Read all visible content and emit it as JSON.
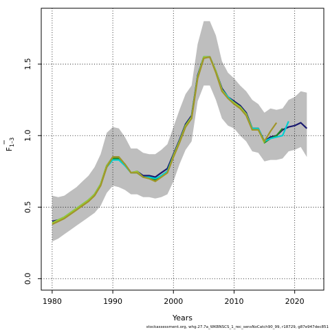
{
  "chart_data": {
    "type": "line",
    "title": "",
    "xlabel": "Years",
    "ylabel": "F",
    "ylabel_subscript": "1–3",
    "footer": "stockassessment.org, whg.27.7a_WKBNSCS_1_rec_sensNoCatch90_99, r18729, g87e947dec851",
    "xlim": [
      1978.2,
      1979.8
    ],
    "x_range": [
      1978.2,
      2024.8
    ],
    "y_range": [
      -0.08,
      1.89
    ],
    "x_ticks": [
      1980,
      1990,
      2000,
      2010,
      2020
    ],
    "y_ticks": [
      0.0,
      0.5,
      1.0,
      1.5
    ],
    "y_tick_labels": [
      "0.0",
      "0.5",
      "1.0",
      "1.5"
    ],
    "grid": true,
    "grid_style": "dotted",
    "legend": "none",
    "confidence_band": {
      "color": "#bebebe",
      "x": [
        1980,
        1981,
        1982,
        1983,
        1984,
        1985,
        1986,
        1987,
        1988,
        1989,
        1990,
        1991,
        1992,
        1993,
        1994,
        1995,
        1996,
        1997,
        1998,
        1999,
        2000,
        2001,
        2002,
        2003,
        2004,
        2005,
        2006,
        2007,
        2008,
        2009,
        2010,
        2011,
        2012,
        2013,
        2014,
        2015,
        2016,
        2017,
        2018,
        2019,
        2020,
        2021,
        2022
      ],
      "upper": [
        0.58,
        0.57,
        0.58,
        0.61,
        0.64,
        0.68,
        0.72,
        0.78,
        0.87,
        1.02,
        1.06,
        1.05,
        0.99,
        0.91,
        0.91,
        0.88,
        0.87,
        0.87,
        0.9,
        0.94,
        1.06,
        1.18,
        1.29,
        1.35,
        1.64,
        1.8,
        1.8,
        1.7,
        1.52,
        1.44,
        1.4,
        1.35,
        1.31,
        1.25,
        1.22,
        1.16,
        1.19,
        1.18,
        1.19,
        1.25,
        1.27,
        1.31,
        1.3
      ],
      "lower": [
        0.26,
        0.28,
        0.31,
        0.34,
        0.37,
        0.4,
        0.43,
        0.46,
        0.51,
        0.6,
        0.65,
        0.64,
        0.62,
        0.59,
        0.59,
        0.57,
        0.57,
        0.56,
        0.57,
        0.59,
        0.68,
        0.8,
        0.9,
        0.96,
        1.24,
        1.35,
        1.35,
        1.25,
        1.12,
        1.07,
        1.05,
        1.0,
        0.96,
        0.89,
        0.88,
        0.82,
        0.83,
        0.83,
        0.84,
        0.89,
        0.9,
        0.92,
        0.85
      ]
    },
    "series": [
      {
        "color": "#191970",
        "x": [
          1980,
          1981,
          1982,
          1983,
          1984,
          1985,
          1986,
          1987,
          1988,
          1989,
          1990,
          1991,
          1992,
          1993,
          1994,
          1995,
          1996,
          1997,
          1998,
          1999,
          2000,
          2001,
          2002,
          2003,
          2004,
          2005,
          2006,
          2007,
          2008,
          2009,
          2010,
          2011,
          2012,
          2013,
          2014,
          2015,
          2016,
          2017,
          2018,
          2019,
          2020,
          2021,
          2022
        ],
        "values": [
          0.4,
          0.41,
          0.43,
          0.46,
          0.49,
          0.52,
          0.55,
          0.59,
          0.66,
          0.79,
          0.85,
          0.85,
          0.8,
          0.74,
          0.75,
          0.72,
          0.72,
          0.71,
          0.74,
          0.77,
          0.87,
          0.97,
          1.08,
          1.14,
          1.42,
          1.55,
          1.55,
          1.45,
          1.33,
          1.27,
          1.24,
          1.21,
          1.16,
          1.05,
          1.05,
          0.96,
          0.99,
          1.0,
          1.04,
          1.06,
          1.07,
          1.09,
          1.05
        ]
      },
      {
        "color": "#228b22",
        "x": [
          1980,
          1981,
          1982,
          1983,
          1984,
          1985,
          1986,
          1987,
          1988,
          1989,
          1990,
          1991,
          1992,
          1993,
          1994,
          1995,
          1996,
          1997,
          1998,
          1999,
          2000,
          2001,
          2002,
          2003,
          2004,
          2005,
          2006,
          2007,
          2008,
          2009,
          2010,
          2011,
          2012,
          2013,
          2014,
          2015,
          2016,
          2017,
          2018
        ],
        "values": [
          0.39,
          0.41,
          0.43,
          0.46,
          0.49,
          0.52,
          0.55,
          0.59,
          0.66,
          0.79,
          0.84,
          0.84,
          0.8,
          0.74,
          0.74,
          0.71,
          0.7,
          0.69,
          0.72,
          0.75,
          0.86,
          0.96,
          1.07,
          1.13,
          1.41,
          1.55,
          1.55,
          1.45,
          1.32,
          1.27,
          1.23,
          1.2,
          1.15,
          1.05,
          1.05,
          0.95,
          0.98,
          1.0,
          1.05
        ]
      },
      {
        "color": "#00ced1",
        "x": [
          1980,
          1981,
          1982,
          1983,
          1984,
          1985,
          1986,
          1987,
          1988,
          1989,
          1990,
          1991,
          1992,
          1993,
          1994,
          1995,
          1996,
          1997,
          1998,
          1999,
          2000,
          2001,
          2002,
          2003,
          2004,
          2005,
          2006,
          2007,
          2008,
          2009,
          2010,
          2011,
          2012,
          2013,
          2014,
          2015,
          2016,
          2017,
          2018,
          2019
        ],
        "values": [
          0.39,
          0.41,
          0.43,
          0.46,
          0.49,
          0.52,
          0.55,
          0.59,
          0.66,
          0.78,
          0.83,
          0.83,
          0.79,
          0.74,
          0.74,
          0.71,
          0.71,
          0.7,
          0.72,
          0.75,
          0.86,
          0.96,
          1.07,
          1.13,
          1.41,
          1.55,
          1.55,
          1.45,
          1.32,
          1.27,
          1.23,
          1.2,
          1.15,
          1.05,
          1.05,
          0.96,
          0.98,
          0.99,
          1.0,
          1.1
        ]
      },
      {
        "color": "#9acd32",
        "x": [
          1980,
          1981,
          1982,
          1983,
          1984,
          1985,
          1986,
          1987,
          1988,
          1989,
          1990,
          1991,
          1992,
          1993,
          1994,
          1995,
          1996,
          1997,
          1998,
          1999,
          2000,
          2001,
          2002,
          2003,
          2004,
          2005,
          2006,
          2007,
          2008,
          2009,
          2010,
          2011,
          2012,
          2013,
          2014,
          2015
        ],
        "values": [
          0.39,
          0.41,
          0.43,
          0.46,
          0.49,
          0.52,
          0.55,
          0.59,
          0.66,
          0.79,
          0.85,
          0.85,
          0.8,
          0.74,
          0.75,
          0.71,
          0.7,
          0.68,
          0.71,
          0.74,
          0.86,
          0.96,
          1.07,
          1.13,
          1.41,
          1.55,
          1.55,
          1.45,
          1.32,
          1.26,
          1.23,
          1.2,
          1.15,
          1.04,
          1.04,
          0.95
        ]
      },
      {
        "color": "#a0952a",
        "x": [
          1980,
          1981,
          1982,
          1983,
          1984,
          1985,
          1986,
          1987,
          1988,
          1989,
          1990,
          1991,
          1992,
          1993,
          1994,
          1995,
          1996,
          1997,
          1998,
          1999,
          2000,
          2001,
          2002,
          2003,
          2004,
          2005,
          2006,
          2007,
          2008,
          2009,
          2010,
          2011,
          2012,
          2013,
          2014,
          2015,
          2016,
          2017
        ],
        "values": [
          0.38,
          0.4,
          0.42,
          0.45,
          0.48,
          0.51,
          0.54,
          0.58,
          0.65,
          0.78,
          0.85,
          0.85,
          0.8,
          0.74,
          0.74,
          0.71,
          0.7,
          0.68,
          0.71,
          0.74,
          0.85,
          0.95,
          1.06,
          1.12,
          1.4,
          1.54,
          1.55,
          1.44,
          1.31,
          1.26,
          1.22,
          1.19,
          1.14,
          1.04,
          1.04,
          0.96,
          1.03,
          1.09
        ]
      }
    ]
  }
}
